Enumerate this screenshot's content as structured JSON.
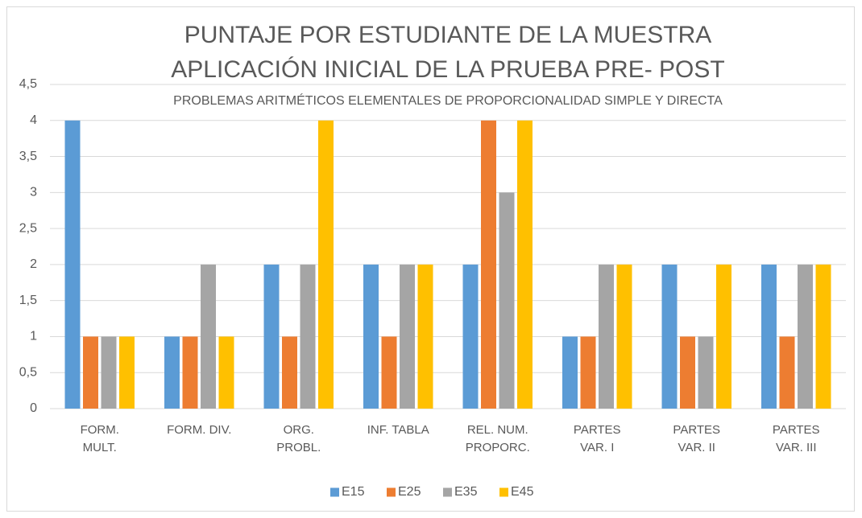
{
  "chart_data": {
    "type": "bar",
    "title": [
      "PUNTAJE POR ESTUDIANTE DE LA MUESTRA",
      "APLICACIÓN INICIAL  DE LA PRUEBA PRE- POST"
    ],
    "subtitle": "PROBLEMAS ARITMÉTICOS ELEMENTALES DE PROPORCIONALIDAD SIMPLE Y DIRECTA",
    "categories": [
      "FORM. MULT.",
      "FORM. DIV.",
      "ORG. PROBL.",
      "INF. TABLA",
      "REL. NUM. PROPORC.",
      "PARTES VAR. I",
      "PARTES VAR. II",
      "PARTES VAR. III"
    ],
    "series": [
      {
        "name": "E15",
        "color": "#5b9bd5",
        "values": [
          4,
          1,
          2,
          2,
          2,
          1,
          2,
          2
        ]
      },
      {
        "name": "E25",
        "color": "#ed7d31",
        "values": [
          1,
          1,
          1,
          1,
          4,
          1,
          1,
          1
        ]
      },
      {
        "name": "E35",
        "color": "#a5a5a5",
        "values": [
          1,
          2,
          2,
          2,
          3,
          2,
          1,
          2
        ]
      },
      {
        "name": "E45",
        "color": "#ffc000",
        "values": [
          1,
          1,
          4,
          2,
          4,
          2,
          2,
          2
        ]
      }
    ],
    "ylim": [
      0,
      4.5
    ],
    "yticks": [
      0,
      {
        "value": 0.5,
        "label": "0,5"
      },
      1,
      {
        "value": 1.5,
        "label": "1,5"
      },
      2,
      {
        "value": 2.5,
        "label": "2,5"
      },
      3,
      {
        "value": 3.5,
        "label": "3,5"
      },
      4,
      {
        "value": 4.5,
        "label": "4,5"
      }
    ],
    "grid": true,
    "legend": "bottom"
  }
}
